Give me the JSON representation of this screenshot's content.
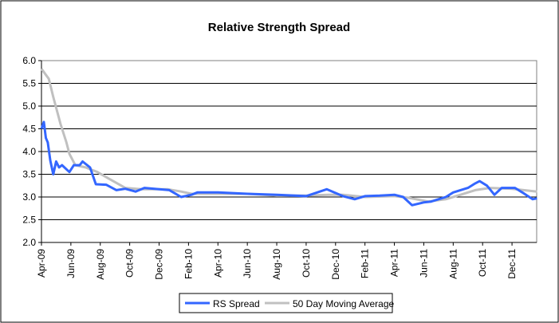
{
  "chart_data": {
    "type": "line",
    "title": "Relative Strength Spread",
    "xlabel": "",
    "ylabel": "",
    "ylim": [
      2.0,
      6.0
    ],
    "yticks": [
      "2.0",
      "2.5",
      "3.0",
      "3.5",
      "4.0",
      "4.5",
      "5.0",
      "5.5",
      "6.0"
    ],
    "x_unit": "months since Apr-09",
    "xlim": [
      0,
      33.7
    ],
    "xticks": [
      "Apr-09",
      "Jun-09",
      "Aug-09",
      "Oct-09",
      "Dec-09",
      "Feb-10",
      "Apr-10",
      "Jun-10",
      "Aug-10",
      "Oct-10",
      "Dec-10",
      "Feb-11",
      "Apr-11",
      "Jun-11",
      "Aug-11",
      "Oct-11",
      "Dec-11"
    ],
    "grid": "horizontal",
    "legend_position": "bottom",
    "series": [
      {
        "name": "RS Spread",
        "color": "#3366FF",
        "x": [
          0,
          0.16,
          0.3,
          0.43,
          0.6,
          0.8,
          1,
          1.2,
          1.4,
          1.9,
          2.2,
          2.6,
          2.8,
          3.3,
          3.7,
          4.4,
          5.1,
          5.7,
          6.4,
          7,
          8,
          8.7,
          9.5,
          10.2,
          10.6,
          12,
          14,
          16,
          18,
          19.4,
          20.5,
          21.3,
          22,
          23,
          24,
          24.6,
          25.2,
          26,
          26.5,
          27,
          27.5,
          28,
          28.5,
          29,
          29.5,
          29.8,
          30.3,
          30.8,
          31.3,
          32.2,
          32.7,
          33.4,
          33.7
        ],
        "y": [
          4.5,
          4.65,
          4.3,
          4.2,
          3.8,
          3.5,
          3.78,
          3.65,
          3.7,
          3.55,
          3.7,
          3.7,
          3.78,
          3.65,
          3.28,
          3.27,
          3.15,
          3.18,
          3.12,
          3.2,
          3.17,
          3.15,
          3.0,
          3.05,
          3.1,
          3.1,
          3.07,
          3.05,
          3.02,
          3.17,
          3.02,
          2.95,
          3.02,
          3.03,
          3.05,
          3.0,
          2.82,
          2.88,
          2.9,
          2.95,
          3.0,
          3.1,
          3.15,
          3.2,
          3.3,
          3.35,
          3.25,
          3.05,
          3.2,
          3.2,
          3.1,
          2.95,
          2.97
        ]
      },
      {
        "name": "50 Day Moving Average",
        "color": "#C0C0C0",
        "x": [
          0,
          0.5,
          0.8,
          1.3,
          1.7,
          1.9,
          2.3,
          3,
          3.8,
          4.6,
          5.7,
          6.8,
          8.6,
          9.5,
          10.2,
          12,
          14,
          16,
          18,
          19.5,
          20.5,
          22,
          24,
          25,
          26.3,
          27.5,
          28.5,
          29.5,
          30.5,
          32,
          33.7
        ],
        "y": [
          5.82,
          5.6,
          5.2,
          4.6,
          4.2,
          3.95,
          3.7,
          3.65,
          3.55,
          3.4,
          3.2,
          3.17,
          3.17,
          3.12,
          3.07,
          3.07,
          3.07,
          3.03,
          3.03,
          3.05,
          3.05,
          3.0,
          3.02,
          2.98,
          2.9,
          2.95,
          3.05,
          3.15,
          3.2,
          3.18,
          3.12
        ]
      }
    ]
  }
}
